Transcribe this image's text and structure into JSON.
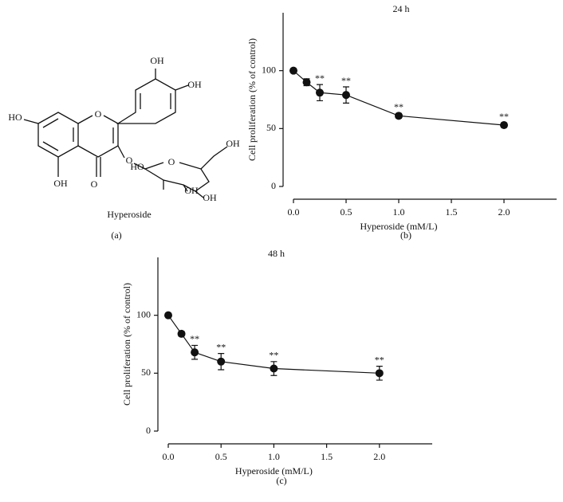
{
  "structure": {
    "name": "Hyperoside",
    "atoms": [
      "OH",
      "OH",
      "HO",
      "O",
      "O",
      "O",
      "OH",
      "HO",
      "OH",
      "O",
      "OH",
      "OH"
    ],
    "panel": "(a)"
  },
  "chart_data": [
    {
      "type": "line",
      "panel": "(b)",
      "title": "24 h",
      "x_label": "Hyperoside (mM/L)",
      "y_label": "Cell proliferation (% of control)",
      "x": [
        0,
        0.125,
        0.25,
        0.5,
        1.0,
        2.0
      ],
      "values": [
        100,
        90,
        81,
        79,
        61,
        53
      ],
      "errors": [
        0,
        3,
        7,
        7,
        2,
        2
      ],
      "color": "#111111",
      "annotations": [
        {
          "x": 0.25,
          "text": "**"
        },
        {
          "x": 0.5,
          "text": "**"
        },
        {
          "x": 1.0,
          "text": "**"
        },
        {
          "x": 2.0,
          "text": "**"
        }
      ],
      "xlim": [
        0,
        2.5
      ],
      "ylim": [
        0,
        150
      ],
      "xticks": [
        {
          "value": 0,
          "label": "0.0"
        },
        0.5,
        {
          "value": 1,
          "label": "1.0"
        },
        1.5,
        {
          "value": 2,
          "label": "2.0"
        }
      ],
      "yticks": [
        0,
        50,
        100
      ]
    },
    {
      "type": "line",
      "panel": "(c)",
      "title": "48 h",
      "x_label": "Hyperoside (mM/L)",
      "y_label": "Cell proliferation (% of control)",
      "x": [
        0,
        0.125,
        0.25,
        0.5,
        1.0,
        2.0
      ],
      "values": [
        100,
        84,
        68,
        60,
        54,
        50
      ],
      "errors": [
        0,
        2,
        6,
        7,
        6,
        6
      ],
      "color": "#111111",
      "annotations": [
        {
          "x": 0.25,
          "text": "**"
        },
        {
          "x": 0.5,
          "text": "**"
        },
        {
          "x": 1.0,
          "text": "**"
        },
        {
          "x": 2.0,
          "text": "**"
        }
      ],
      "xlim": [
        0,
        2.5
      ],
      "ylim": [
        0,
        150
      ],
      "xticks": [
        {
          "value": 0,
          "label": "0.0"
        },
        0.5,
        {
          "value": 1,
          "label": "1.0"
        },
        1.5,
        {
          "value": 2,
          "label": "2.0"
        }
      ],
      "yticks": [
        0,
        50,
        100
      ]
    }
  ]
}
